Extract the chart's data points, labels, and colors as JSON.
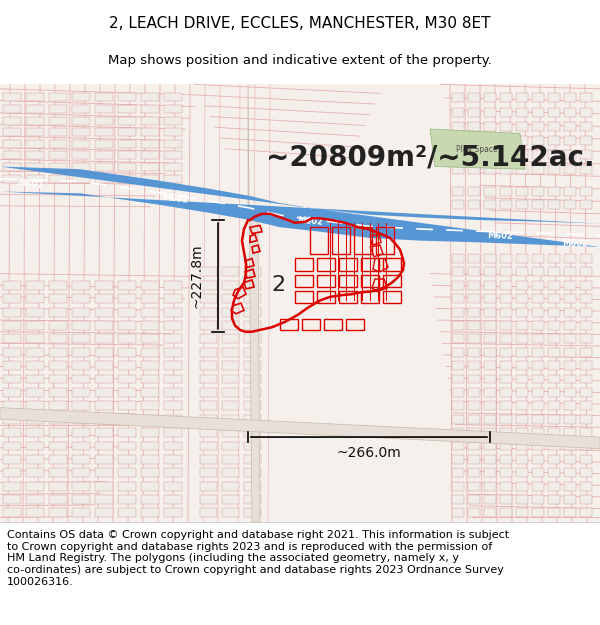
{
  "title_line1": "2, LEACH DRIVE, ECCLES, MANCHESTER, M30 8ET",
  "title_line2": "Map shows position and indicative extent of the property.",
  "area_text": "~20809m²/~5.142ac.",
  "dim_width": "~266.0m",
  "dim_height": "~227.8m",
  "property_label": "2",
  "footer_text": "Contains OS data © Crown copyright and database right 2021. This information is subject\nto Crown copyright and database rights 2023 and is reproduced with the permission of\nHM Land Registry. The polygons (including the associated geometry, namely x, y\nco-ordinates) are subject to Crown copyright and database rights 2023 Ordnance Survey\n100026316.",
  "fig_width": 6.0,
  "fig_height": 6.25,
  "dpi": 100,
  "map_bg": "#f5f0eb",
  "street_color": "#e8b0b0",
  "building_fill": "#f0ece8",
  "building_edge": "#d09090",
  "motorway_color": "#4a8fd4",
  "highlight_color": "#dd0000",
  "green_color": "#c8d8b0",
  "title_fontsize": 11,
  "subtitle_fontsize": 9.5,
  "area_fontsize": 20,
  "dim_fontsize": 10,
  "footer_fontsize": 8.0
}
